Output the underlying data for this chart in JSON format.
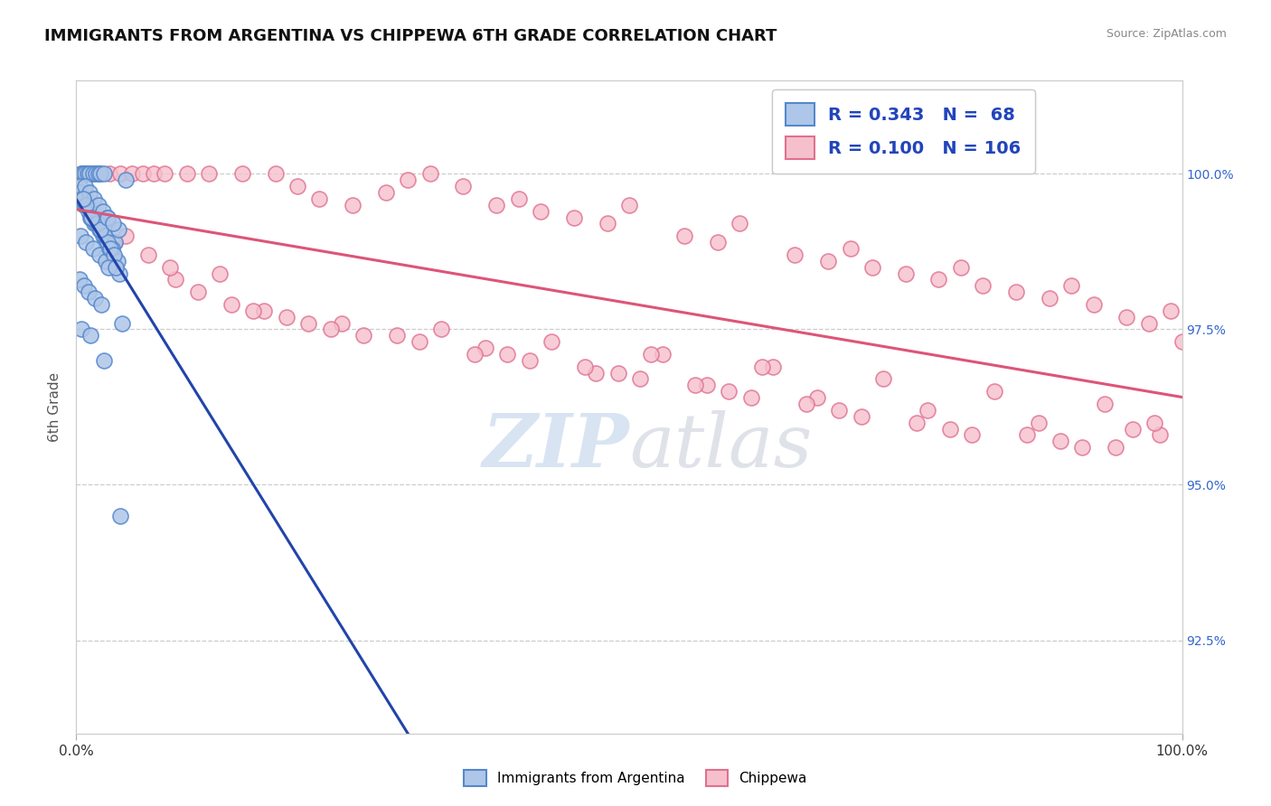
{
  "title": "IMMIGRANTS FROM ARGENTINA VS CHIPPEWA 6TH GRADE CORRELATION CHART",
  "source_text": "Source: ZipAtlas.com",
  "ylabel": "6th Grade",
  "watermark_zip": "ZIP",
  "watermark_atlas": "atlas",
  "xlim": [
    0.0,
    100.0
  ],
  "ylim_min": 91.0,
  "ylim_max": 101.5,
  "right_yticks": [
    92.5,
    95.0,
    97.5,
    100.0
  ],
  "grid_yticks": [
    92.5,
    95.0,
    97.5,
    100.0
  ],
  "legend_blue_r": "0.343",
  "legend_blue_n": "68",
  "legend_pink_r": "0.100",
  "legend_pink_n": "106",
  "legend_label_blue": "Immigrants from Argentina",
  "legend_label_pink": "Chippewa",
  "blue_color": "#aec6e8",
  "blue_edge_color": "#5588cc",
  "pink_color": "#f5c0cc",
  "pink_edge_color": "#e07090",
  "blue_line_color": "#2244aa",
  "pink_line_color": "#dd5577",
  "bg_color": "#ffffff",
  "blue_x": [
    0.5,
    0.6,
    0.8,
    1.0,
    1.2,
    1.5,
    1.8,
    2.0,
    2.2,
    2.5,
    0.3,
    0.4,
    0.5,
    0.7,
    0.9,
    1.1,
    1.3,
    1.6,
    1.9,
    2.1,
    2.4,
    2.7,
    0.6,
    1.0,
    1.4,
    1.8,
    2.2,
    2.6,
    0.8,
    1.2,
    1.6,
    2.0,
    2.4,
    2.8,
    0.4,
    0.9,
    1.5,
    2.1,
    2.7,
    0.3,
    0.7,
    1.1,
    1.7,
    2.3,
    0.5,
    1.3,
    2.5,
    4.0,
    3.0,
    3.5,
    3.8,
    3.2,
    3.7,
    4.5,
    2.8,
    3.1,
    3.4,
    3.9,
    4.1,
    2.9,
    3.6,
    1.9,
    2.2,
    0.9,
    1.4,
    0.6,
    2.8,
    3.3
  ],
  "blue_y": [
    100.0,
    100.0,
    100.0,
    100.0,
    100.0,
    100.0,
    100.0,
    100.0,
    100.0,
    100.0,
    99.8,
    99.7,
    99.6,
    99.5,
    99.5,
    99.4,
    99.3,
    99.2,
    99.2,
    99.1,
    99.0,
    98.9,
    99.6,
    99.5,
    99.3,
    99.2,
    99.1,
    99.0,
    99.8,
    99.7,
    99.6,
    99.5,
    99.4,
    99.3,
    99.0,
    98.9,
    98.8,
    98.7,
    98.6,
    98.3,
    98.2,
    98.1,
    98.0,
    97.9,
    97.5,
    97.4,
    97.0,
    94.5,
    98.8,
    98.9,
    99.1,
    98.8,
    98.6,
    99.9,
    98.9,
    98.8,
    98.7,
    98.4,
    97.6,
    98.5,
    98.5,
    99.2,
    99.1,
    99.5,
    99.3,
    99.6,
    99.3,
    99.2
  ],
  "pink_x": [
    0.5,
    1.0,
    1.5,
    2.0,
    3.0,
    4.0,
    5.0,
    6.0,
    7.0,
    8.0,
    10.0,
    12.0,
    15.0,
    18.0,
    20.0,
    22.0,
    25.0,
    28.0,
    30.0,
    32.0,
    35.0,
    38.0,
    40.0,
    42.0,
    45.0,
    48.0,
    50.0,
    55.0,
    58.0,
    60.0,
    65.0,
    68.0,
    70.0,
    72.0,
    75.0,
    78.0,
    80.0,
    82.0,
    85.0,
    88.0,
    90.0,
    92.0,
    95.0,
    97.0,
    99.0,
    100.0,
    0.8,
    2.5,
    9.0,
    14.0,
    24.0,
    33.0,
    43.0,
    53.0,
    63.0,
    73.0,
    83.0,
    93.0,
    1.2,
    3.5,
    11.0,
    17.0,
    26.0,
    37.0,
    47.0,
    57.0,
    67.0,
    77.0,
    87.0,
    95.5,
    0.3,
    1.8,
    6.5,
    16.0,
    21.0,
    31.0,
    41.0,
    51.0,
    61.0,
    71.0,
    81.0,
    91.0,
    98.0,
    0.7,
    4.5,
    13.0,
    19.0,
    29.0,
    39.0,
    49.0,
    59.0,
    69.0,
    79.0,
    89.0,
    97.5,
    2.8,
    8.5,
    23.0,
    36.0,
    46.0,
    56.0,
    66.0,
    76.0,
    86.0,
    94.0,
    52.0,
    62.0
  ],
  "pink_y": [
    100.0,
    100.0,
    100.0,
    100.0,
    100.0,
    100.0,
    100.0,
    100.0,
    100.0,
    100.0,
    100.0,
    100.0,
    100.0,
    100.0,
    99.8,
    99.6,
    99.5,
    99.7,
    99.9,
    100.0,
    99.8,
    99.5,
    99.6,
    99.4,
    99.3,
    99.2,
    99.5,
    99.0,
    98.9,
    99.2,
    98.7,
    98.6,
    98.8,
    98.5,
    98.4,
    98.3,
    98.5,
    98.2,
    98.1,
    98.0,
    98.2,
    97.9,
    97.7,
    97.6,
    97.8,
    97.3,
    99.7,
    99.1,
    98.3,
    97.9,
    97.6,
    97.5,
    97.3,
    97.1,
    96.9,
    96.7,
    96.5,
    96.3,
    99.5,
    98.9,
    98.1,
    97.8,
    97.4,
    97.2,
    96.8,
    96.6,
    96.4,
    96.2,
    96.0,
    95.9,
    99.8,
    99.3,
    98.7,
    97.8,
    97.6,
    97.3,
    97.0,
    96.7,
    96.4,
    96.1,
    95.8,
    95.6,
    95.8,
    99.6,
    99.0,
    98.4,
    97.7,
    97.4,
    97.1,
    96.8,
    96.5,
    96.2,
    95.9,
    95.7,
    96.0,
    99.2,
    98.5,
    97.5,
    97.1,
    96.9,
    96.6,
    96.3,
    96.0,
    95.8,
    95.6,
    97.1,
    96.9
  ]
}
